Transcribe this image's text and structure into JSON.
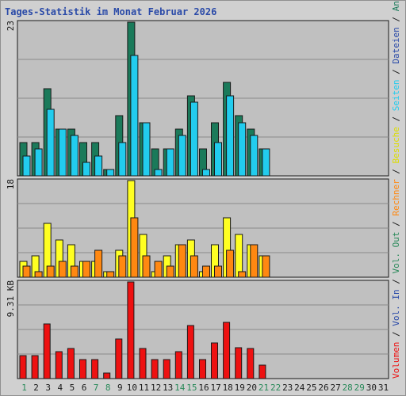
{
  "title": "Tages-Statistik im Monat Februar 2026",
  "colors": {
    "anfragen": "#1a7a5a",
    "dateien": "#22ccee",
    "besuche": "#ffff22",
    "rechner": "#ff8811",
    "volumen": "#ee1111",
    "weekday_tick": "#1a1a1a",
    "weekend_tick": "#2a8a5a"
  },
  "right_labels": {
    "top": [
      {
        "text": "Anfragen",
        "color": "#1a7a5a"
      },
      {
        "text": " / ",
        "color": "#1a1a1a"
      },
      {
        "text": "Dateien",
        "color": "#2a4aa8"
      },
      {
        "text": " / ",
        "color": "#1a1a1a"
      },
      {
        "text": "Seiten",
        "color": "#22ccee"
      },
      {
        "text": " / ",
        "color": "#1a1a1a"
      },
      {
        "text": "Besuche",
        "color": "#dddd00"
      },
      {
        "text": " / ",
        "color": "#1a1a1a"
      },
      {
        "text": "Rechner",
        "color": "#ff8811"
      },
      {
        "text": " / ",
        "color": "#1a1a1a"
      },
      {
        "text": "Vol. Out",
        "color": "#2a8a5a"
      },
      {
        "text": " / ",
        "color": "#1a1a1a"
      },
      {
        "text": "Vol. In",
        "color": "#2a4aa8"
      },
      {
        "text": " / ",
        "color": "#1a1a1a"
      },
      {
        "text": "Volumen",
        "color": "#ee1111"
      }
    ]
  },
  "chart_data": [
    {
      "type": "bar",
      "panel": "top",
      "ymax_label": "23",
      "ylim": [
        0,
        23
      ],
      "x": [
        1,
        2,
        3,
        4,
        5,
        6,
        7,
        8,
        9,
        10,
        11,
        12,
        13,
        14,
        15,
        16,
        17,
        18,
        19,
        20,
        21,
        22,
        23,
        24,
        25,
        26,
        27,
        28,
        29,
        30,
        31
      ],
      "series": [
        {
          "name": "Anfragen",
          "values": [
            5,
            5,
            13,
            7,
            7,
            5,
            5,
            1,
            9,
            23,
            8,
            4,
            4,
            7,
            12,
            4,
            8,
            14,
            9,
            7,
            4,
            0,
            0,
            0,
            0,
            0,
            0,
            0,
            0,
            0,
            0
          ]
        },
        {
          "name": "Dateien",
          "values": [
            3,
            4,
            10,
            7,
            6,
            2,
            3,
            1,
            5,
            18,
            8,
            1,
            4,
            6,
            11,
            1,
            5,
            12,
            8,
            6,
            4,
            0,
            0,
            0,
            0,
            0,
            0,
            0,
            0,
            0,
            0
          ]
        }
      ]
    },
    {
      "type": "bar",
      "panel": "middle",
      "ymax_label": "18",
      "ylim": [
        0,
        18
      ],
      "x": [
        1,
        2,
        3,
        4,
        5,
        6,
        7,
        8,
        9,
        10,
        11,
        12,
        13,
        14,
        15,
        16,
        17,
        18,
        19,
        20,
        21,
        22,
        23,
        24,
        25,
        26,
        27,
        28,
        29,
        30,
        31
      ],
      "series": [
        {
          "name": "Besuche",
          "values": [
            3,
            4,
            10,
            7,
            6,
            3,
            3,
            1,
            5,
            18,
            8,
            1,
            4,
            6,
            7,
            1,
            6,
            11,
            8,
            6,
            4,
            0,
            0,
            0,
            0,
            0,
            0,
            0,
            0,
            0,
            0
          ]
        },
        {
          "name": "Rechner",
          "values": [
            2,
            1,
            2,
            3,
            2,
            3,
            5,
            1,
            4,
            11,
            4,
            3,
            2,
            6,
            4,
            2,
            2,
            5,
            1,
            6,
            4,
            0,
            0,
            0,
            0,
            0,
            0,
            0,
            0,
            0,
            0
          ]
        }
      ]
    },
    {
      "type": "bar",
      "panel": "bottom",
      "ymax_label": "9.31 KB",
      "ylim": [
        0,
        9.31
      ],
      "x": [
        1,
        2,
        3,
        4,
        5,
        6,
        7,
        8,
        9,
        10,
        11,
        12,
        13,
        14,
        15,
        16,
        17,
        18,
        19,
        20,
        21,
        22,
        23,
        24,
        25,
        26,
        27,
        28,
        29,
        30,
        31
      ],
      "series": [
        {
          "name": "Volumen",
          "values": [
            2.2,
            2.2,
            5.3,
            2.6,
            2.9,
            1.8,
            1.8,
            0.5,
            3.8,
            9.31,
            2.9,
            1.8,
            1.8,
            2.6,
            5.1,
            1.8,
            3.4,
            5.4,
            3.0,
            2.9,
            1.3,
            0,
            0,
            0,
            0,
            0,
            0,
            0,
            0,
            0,
            0
          ]
        }
      ]
    }
  ],
  "x_ticks": [
    {
      "label": "1",
      "weekend": true
    },
    {
      "label": "2",
      "weekend": false
    },
    {
      "label": "3",
      "weekend": false
    },
    {
      "label": "4",
      "weekend": false
    },
    {
      "label": "5",
      "weekend": false
    },
    {
      "label": "6",
      "weekend": false
    },
    {
      "label": "7",
      "weekend": true
    },
    {
      "label": "8",
      "weekend": true
    },
    {
      "label": "9",
      "weekend": false
    },
    {
      "label": "10",
      "weekend": false
    },
    {
      "label": "11",
      "weekend": false
    },
    {
      "label": "12",
      "weekend": false
    },
    {
      "label": "13",
      "weekend": false
    },
    {
      "label": "14",
      "weekend": true
    },
    {
      "label": "15",
      "weekend": true
    },
    {
      "label": "16",
      "weekend": false
    },
    {
      "label": "17",
      "weekend": false
    },
    {
      "label": "18",
      "weekend": false
    },
    {
      "label": "19",
      "weekend": false
    },
    {
      "label": "20",
      "weekend": false
    },
    {
      "label": "21",
      "weekend": true
    },
    {
      "label": "22",
      "weekend": true
    },
    {
      "label": "23",
      "weekend": false
    },
    {
      "label": "24",
      "weekend": false
    },
    {
      "label": "25",
      "weekend": false
    },
    {
      "label": "26",
      "weekend": false
    },
    {
      "label": "27",
      "weekend": false
    },
    {
      "label": "28",
      "weekend": true
    },
    {
      "label": "29",
      "weekend": true
    },
    {
      "label": "30",
      "weekend": false
    },
    {
      "label": "31",
      "weekend": false
    }
  ]
}
